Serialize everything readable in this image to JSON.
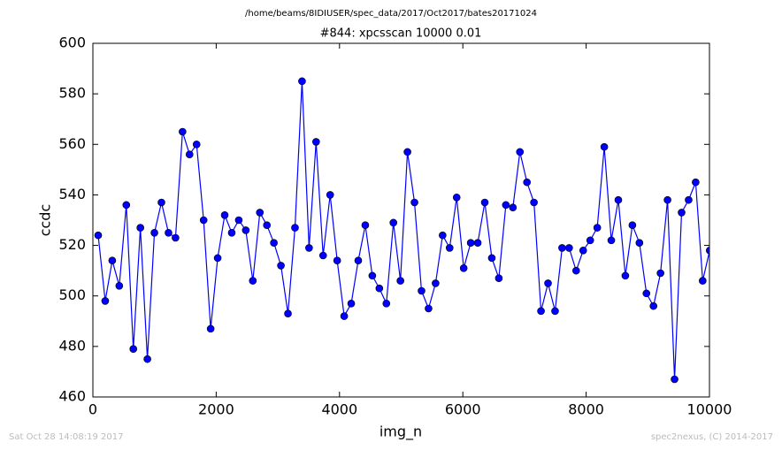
{
  "chart_data": {
    "type": "line",
    "title": "/home/beams/8IDIUSER/spec_data/2017/Oct2017/bates20171024",
    "subtitle": "#844: xpcsscan 10000 0.01",
    "x_label": "img_n",
    "y_label": "ccdc",
    "x": [
      86,
      200,
      314,
      428,
      542,
      656,
      770,
      884,
      998,
      1112,
      1226,
      1340,
      1454,
      1568,
      1682,
      1796,
      1910,
      2024,
      2138,
      2252,
      2366,
      2480,
      2594,
      2708,
      2822,
      2936,
      3050,
      3164,
      3278,
      3392,
      3506,
      3620,
      3734,
      3848,
      3962,
      4076,
      4190,
      4304,
      4418,
      4532,
      4646,
      4760,
      4874,
      4988,
      5102,
      5216,
      5330,
      5444,
      5558,
      5672,
      5786,
      5900,
      6014,
      6128,
      6242,
      6356,
      6470,
      6584,
      6698,
      6812,
      6926,
      7040,
      7154,
      7268,
      7382,
      7496,
      7610,
      7724,
      7838,
      7952,
      8066,
      8180,
      8294,
      8408,
      8522,
      8636,
      8750,
      8864,
      8978,
      9092,
      9206,
      9320,
      9434,
      9548,
      9662,
      9776,
      9890,
      10004
    ],
    "series": [
      {
        "color": "#0000ff",
        "values": [
          524,
          498,
          514,
          504,
          536,
          479,
          527,
          475,
          525,
          537,
          525,
          523,
          565,
          556,
          560,
          530,
          487,
          515,
          532,
          525,
          530,
          526,
          506,
          533,
          528,
          521,
          512,
          493,
          527,
          585,
          519,
          561,
          516,
          540,
          514,
          492,
          497,
          514,
          528,
          508,
          503,
          497,
          529,
          506,
          557,
          537,
          502,
          495,
          505,
          524,
          519,
          539,
          511,
          521,
          521,
          537,
          515,
          507,
          536,
          535,
          557,
          545,
          537,
          494,
          505,
          494,
          519,
          519,
          510,
          518,
          522,
          527,
          559,
          522,
          538,
          508,
          528,
          521,
          501,
          496,
          509,
          538,
          467,
          533,
          538,
          545,
          506,
          518
        ]
      }
    ],
    "xlim": [
      0,
      10000
    ],
    "xticks": [
      0,
      2000,
      4000,
      6000,
      8000,
      10000
    ],
    "ylim": [
      460,
      600
    ],
    "yticks": [
      460,
      480,
      500,
      520,
      540,
      560,
      580,
      600
    ],
    "grid": false
  },
  "footer": {
    "left": "Sat Oct 28 14:08:19 2017",
    "right": "spec2nexus, (C) 2014-2017"
  }
}
